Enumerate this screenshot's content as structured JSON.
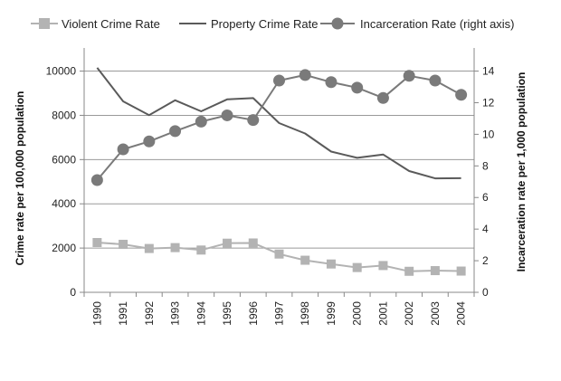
{
  "chart_data": {
    "type": "line",
    "x": [
      "1990",
      "1991",
      "1992",
      "1993",
      "1994",
      "1995",
      "1996",
      "1997",
      "1998",
      "1999",
      "2000",
      "2001",
      "2002",
      "2003",
      "2004"
    ],
    "series": [
      {
        "name": "Violent Crime Rate",
        "axis": "left",
        "marker": "square",
        "color": "#b3b3b3",
        "values": [
          2250,
          2170,
          1980,
          2020,
          1910,
          2220,
          2230,
          1730,
          1450,
          1280,
          1120,
          1210,
          950,
          980,
          960
        ]
      },
      {
        "name": "Property Crime Rate",
        "axis": "left",
        "marker": "none",
        "color": "#5a5a5a",
        "values": [
          10150,
          8630,
          8010,
          8680,
          8180,
          8720,
          8780,
          7650,
          7180,
          6360,
          6080,
          6230,
          5480,
          5150,
          5160
        ]
      },
      {
        "name": "Incarceration Rate (right axis)",
        "axis": "right",
        "marker": "circle",
        "color": "#7a7a7a",
        "values": [
          7.1,
          9.05,
          9.55,
          10.2,
          10.8,
          11.2,
          10.9,
          13.4,
          13.75,
          13.3,
          12.95,
          12.3,
          13.7,
          13.4,
          12.5
        ]
      }
    ],
    "y_left": {
      "label": "Crime rate per 100,000 population",
      "range": [
        0,
        10800
      ],
      "ticks": [
        0,
        2000,
        4000,
        6000,
        8000,
        10000
      ]
    },
    "y_right": {
      "label": "Incarceration rate per 1,000 population",
      "range": [
        0,
        15.12
      ],
      "ticks": [
        0,
        2,
        4,
        6,
        8,
        10,
        12,
        14
      ]
    },
    "grid": true,
    "legend_position": "top"
  }
}
